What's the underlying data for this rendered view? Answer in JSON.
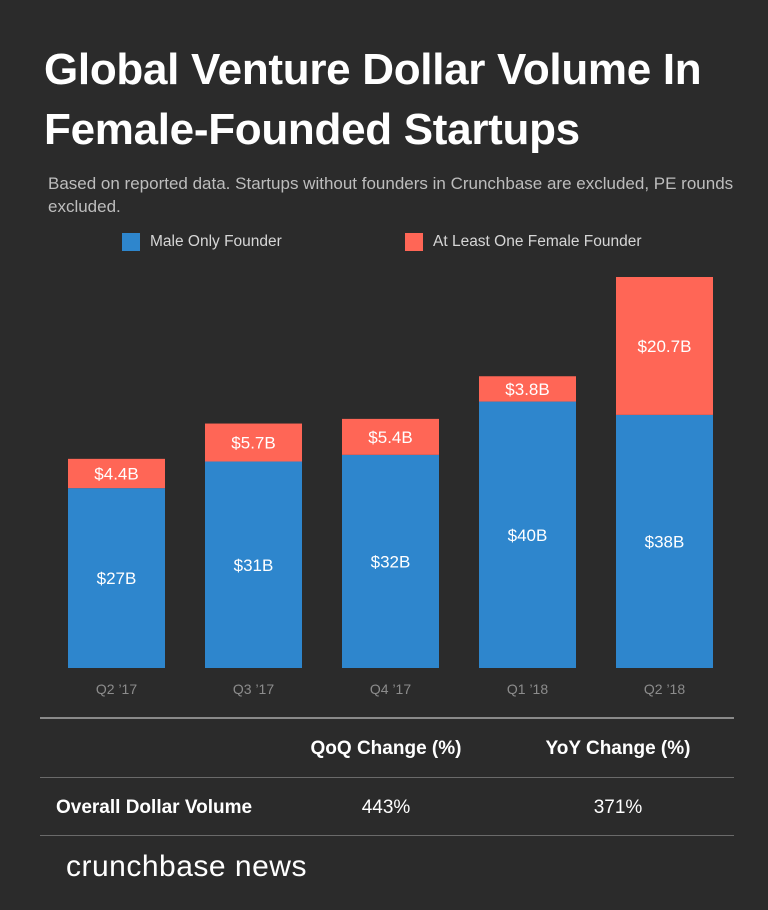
{
  "title": "Global Venture Dollar Volume In Female-Founded Startups",
  "subtitle": "Based on reported data. Startups without founders in Crunchbase are excluded, PE rounds excluded.",
  "colors": {
    "male": "#2e86cd",
    "female": "#ff6656",
    "background": "#2b2b2b",
    "tick": "#8c8c8c"
  },
  "chart_data": {
    "type": "bar",
    "stacked": true,
    "title": "Global Venture Dollar Volume In Female-Founded Startups",
    "categories": [
      "Q2 ’17",
      "Q3 ’17",
      "Q4 ’17",
      "Q1 ’18",
      "Q2 ’18"
    ],
    "series": [
      {
        "name": "Male Only Founder",
        "values": [
          27,
          31,
          32,
          40,
          38
        ],
        "labels": [
          "$27B",
          "$31B",
          "$32B",
          "$40B",
          "$38B"
        ]
      },
      {
        "name": "At Least One Female Founder",
        "values": [
          4.4,
          5.7,
          5.4,
          3.8,
          20.7
        ],
        "labels": [
          "$4.4B",
          "$5.7B",
          "$5.4B",
          "$3.8B",
          "$20.7B"
        ]
      }
    ],
    "ylim": [
      0,
      58.7
    ],
    "unit": "USD billions",
    "xlabel": "",
    "ylabel": "",
    "grid": false,
    "legend_position": "top"
  },
  "table": {
    "headers": [
      "QoQ Change (%)",
      "YoY Change (%)"
    ],
    "row_label": "Overall Dollar Volume",
    "values": [
      "443%",
      "371%"
    ]
  },
  "logo": "crunchbase news"
}
